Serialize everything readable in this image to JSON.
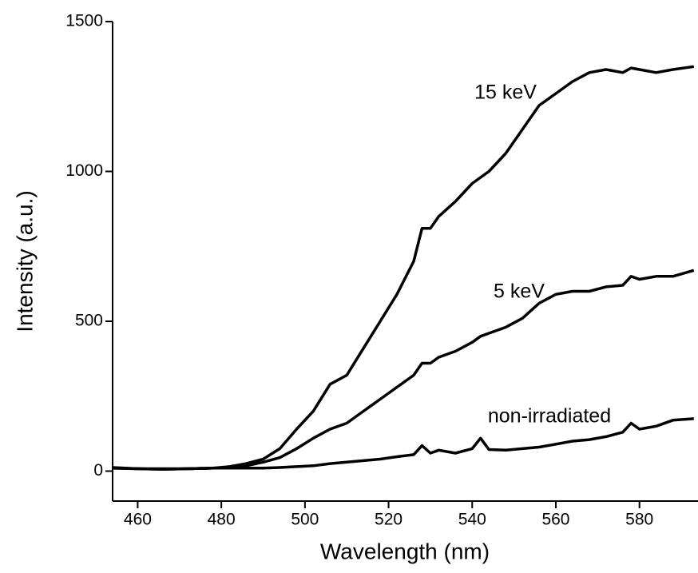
{
  "chart_data": {
    "type": "line",
    "x_label": "Wavelength (nm)",
    "y_label": "Intensity (a.u.)",
    "x": [
      454,
      460,
      466,
      472,
      478,
      482,
      486,
      490,
      494,
      498,
      502,
      506,
      510,
      514,
      518,
      522,
      526,
      528,
      530,
      532,
      536,
      540,
      542,
      544,
      548,
      552,
      556,
      560,
      564,
      568,
      572,
      576,
      578,
      580,
      584,
      588,
      593
    ],
    "series": [
      {
        "name": "15 keV",
        "color": "#000000",
        "values": [
          10,
          8,
          6,
          8,
          10,
          15,
          25,
          40,
          75,
          140,
          200,
          290,
          320,
          410,
          500,
          590,
          700,
          810,
          810,
          850,
          900,
          960,
          980,
          1000,
          1060,
          1140,
          1220,
          1260,
          1300,
          1330,
          1340,
          1330,
          1345,
          1340,
          1330,
          1340,
          1350
        ]
      },
      {
        "name": "5 keV",
        "color": "#000000",
        "values": [
          10,
          8,
          6,
          8,
          10,
          12,
          18,
          30,
          45,
          75,
          110,
          140,
          160,
          200,
          240,
          280,
          320,
          360,
          360,
          380,
          400,
          430,
          450,
          460,
          480,
          510,
          560,
          590,
          600,
          600,
          615,
          620,
          650,
          640,
          650,
          650,
          670
        ]
      },
      {
        "name": "non-irradiated",
        "color": "#000000",
        "values": [
          12,
          8,
          8,
          8,
          10,
          10,
          10,
          10,
          12,
          15,
          18,
          25,
          30,
          35,
          40,
          48,
          55,
          85,
          60,
          70,
          60,
          75,
          110,
          72,
          70,
          75,
          80,
          90,
          100,
          105,
          115,
          130,
          160,
          140,
          150,
          170,
          175
        ]
      }
    ],
    "xlim": [
      454,
      594
    ],
    "xticks": [
      460,
      480,
      500,
      520,
      540,
      560,
      580
    ],
    "ylim": [
      -100,
      1500
    ],
    "yticks": [
      0,
      500,
      1000,
      1500
    ]
  }
}
